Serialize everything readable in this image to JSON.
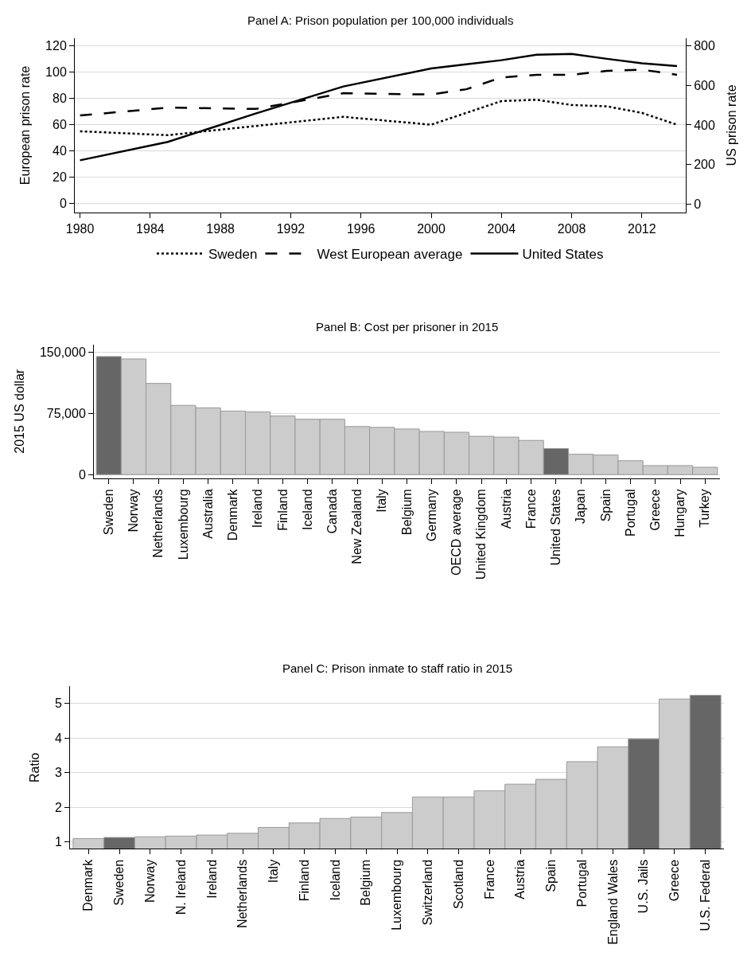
{
  "chart_data": [
    {
      "type": "line",
      "title": "Panel A: Prison population per 100,000 individuals",
      "ylabel": "European prison rate",
      "y2label": "US prison rate",
      "xlim": [
        1979.7,
        2014.5
      ],
      "xticks": [
        1980,
        1984,
        1988,
        1992,
        1996,
        2000,
        2004,
        2008,
        2012
      ],
      "ylim": [
        -7,
        126
      ],
      "yticks": [
        0,
        20,
        40,
        60,
        80,
        100,
        120
      ],
      "y2lim": [
        -44,
        840
      ],
      "y2ticks": [
        0,
        200,
        400,
        600,
        800
      ],
      "grid": "y",
      "legend": "bottom",
      "marker": "none",
      "x": [
        1980,
        1985,
        1990,
        1995,
        2000,
        2002,
        2004,
        2006,
        2008,
        2010,
        2012,
        2014
      ],
      "series": [
        {
          "name": "Sweden",
          "color": "#000000",
          "line_style": "dotted",
          "values": [
            55,
            52,
            59,
            66,
            60,
            69,
            78,
            79,
            75,
            74,
            69,
            60
          ]
        },
        {
          "name": "West European average",
          "color": "#000000",
          "line_style": "dashed",
          "values": [
            67,
            73,
            72,
            84,
            83,
            87,
            96,
            98,
            98,
            101,
            102,
            98
          ]
        },
        {
          "name": "United States",
          "color": "#000000",
          "line_style": "solid",
          "axis": "y2",
          "values": [
            221,
            314,
            458,
            595,
            686,
            707,
            728,
            756,
            760,
            735,
            712,
            698
          ]
        }
      ]
    },
    {
      "type": "bar",
      "title": "Panel B: Cost per prisoner in 2015",
      "ylabel": "2015 US dollar",
      "ylim": [
        -4700,
        160000
      ],
      "yticks": [
        {
          "value": 0,
          "label": "0"
        },
        {
          "value": 75000,
          "label": "75,000"
        },
        {
          "value": 150000,
          "label": "150,000"
        }
      ],
      "grid": "y",
      "categories": [
        "Sweden",
        "Norway",
        "Netherlands",
        "Luxembourg",
        "Australia",
        "Denmark",
        "Ireland",
        "Finland",
        "Iceland",
        "Canada",
        "New Zealand",
        "Italy",
        "Belgium",
        "Germany",
        "OECD average",
        "United Kingdom",
        "Austria",
        "France",
        "United States",
        "Japan",
        "Spain",
        "Portugal",
        "Greece",
        "Hungary",
        "Turkey"
      ],
      "values": [
        145000,
        142000,
        112000,
        85000,
        82000,
        78000,
        77000,
        72000,
        68000,
        68000,
        59000,
        58000,
        56000,
        53000,
        52000,
        47000,
        46000,
        42000,
        32000,
        25000,
        24000,
        17000,
        11000,
        11000,
        9000
      ],
      "colors": [
        "#666666",
        "#cccccc",
        "#cccccc",
        "#cccccc",
        "#cccccc",
        "#cccccc",
        "#cccccc",
        "#cccccc",
        "#cccccc",
        "#cccccc",
        "#cccccc",
        "#cccccc",
        "#cccccc",
        "#cccccc",
        "#cccccc",
        "#cccccc",
        "#cccccc",
        "#cccccc",
        "#666666",
        "#cccccc",
        "#cccccc",
        "#cccccc",
        "#cccccc",
        "#cccccc",
        "#cccccc"
      ]
    },
    {
      "type": "bar",
      "title": "Panel C: Prison inmate to staff ratio in 2015",
      "ylabel": "Ratio",
      "ylim": [
        0.8,
        5.5
      ],
      "yticks": [
        1,
        2,
        3,
        4,
        5
      ],
      "grid": "y",
      "categories": [
        "Denmark",
        "Sweden",
        "Norway",
        "N. Ireland",
        "Ireland",
        "Netherlands",
        "Italy",
        "Finland",
        "Iceland",
        "Belgium",
        "Luxembourg",
        "Switzerland",
        "Scotland",
        "France",
        "Austria",
        "Spain",
        "Portugal",
        "England Wales",
        "U.S. Jails",
        "Greece",
        "U.S. Federal"
      ],
      "values": [
        1.1,
        1.13,
        1.15,
        1.17,
        1.2,
        1.25,
        1.42,
        1.55,
        1.68,
        1.72,
        1.85,
        2.3,
        2.3,
        2.48,
        2.67,
        2.81,
        3.32,
        3.75,
        3.98,
        5.13,
        5.24
      ],
      "colors": [
        "#cccccc",
        "#666666",
        "#cccccc",
        "#cccccc",
        "#cccccc",
        "#cccccc",
        "#cccccc",
        "#cccccc",
        "#cccccc",
        "#cccccc",
        "#cccccc",
        "#cccccc",
        "#cccccc",
        "#cccccc",
        "#cccccc",
        "#cccccc",
        "#cccccc",
        "#cccccc",
        "#666666",
        "#cccccc",
        "#666666"
      ]
    }
  ]
}
